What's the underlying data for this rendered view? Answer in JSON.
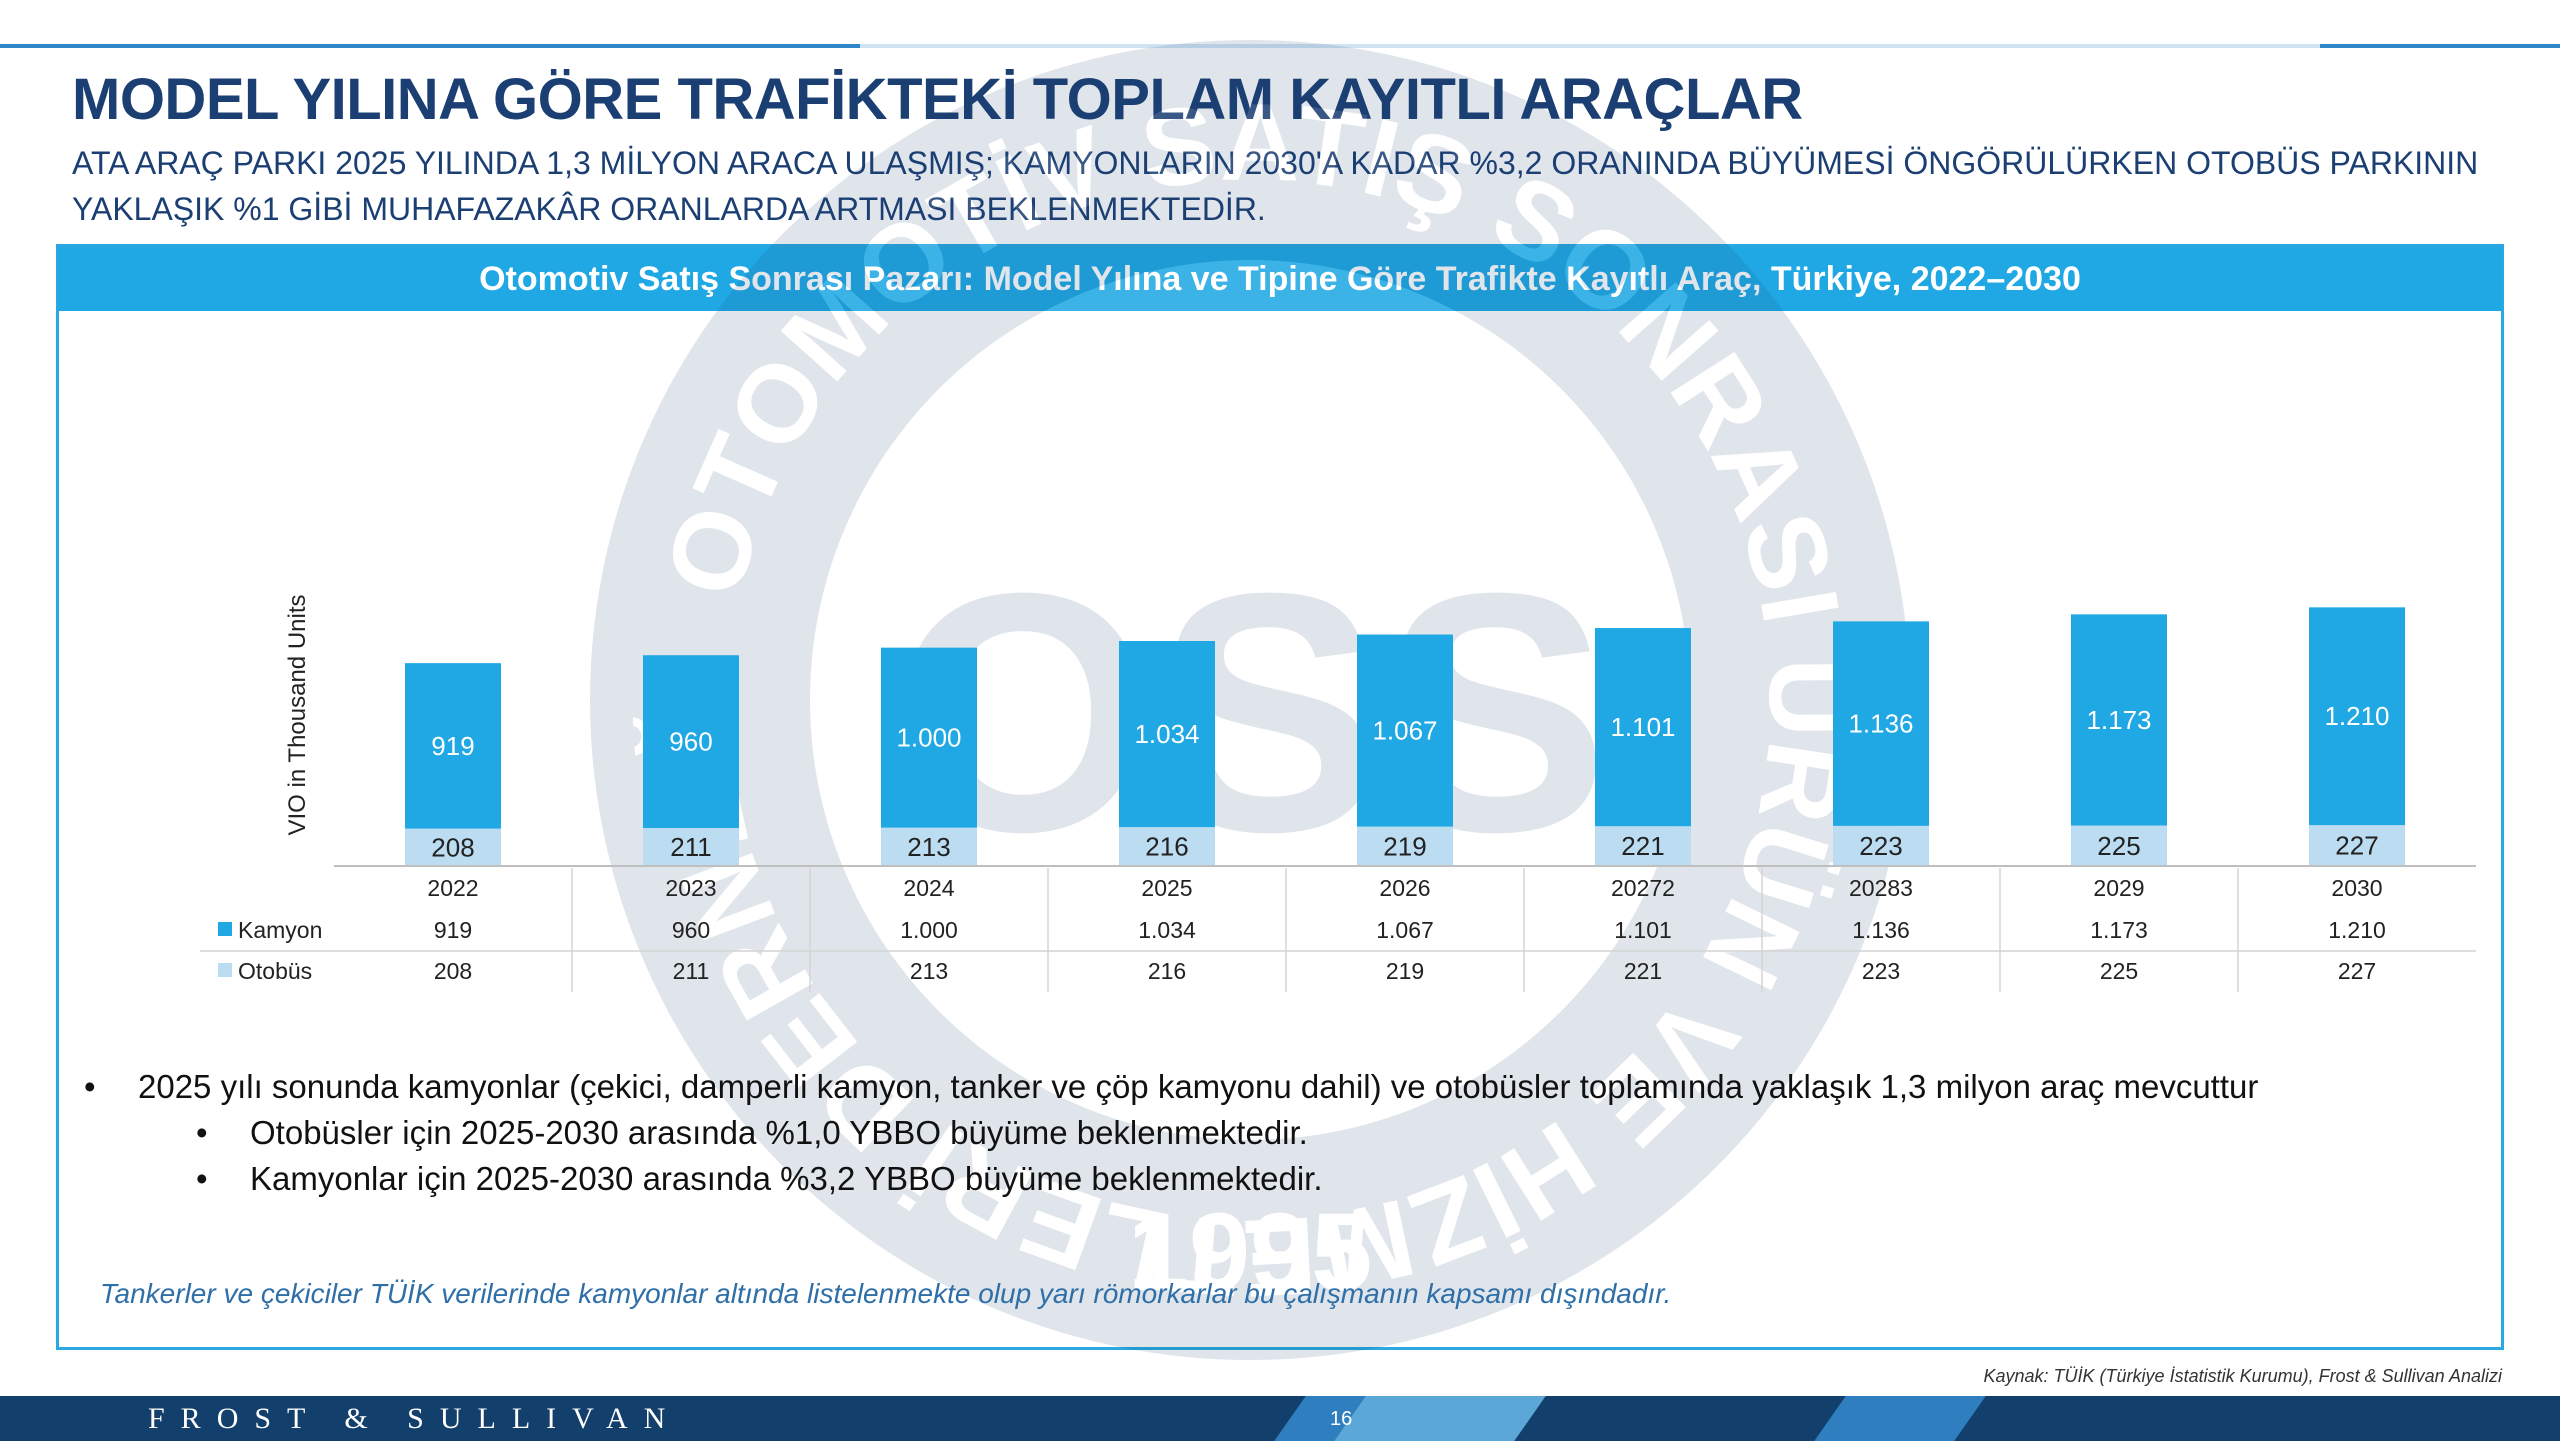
{
  "header": {
    "title": "MODEL YILINA GÖRE TRAFİKTEKİ TOPLAM KAYITLI ARAÇLAR",
    "subtitle": "ATA ARAÇ PARKI 2025 YILINDA 1,3 MİLYON ARACA ULAŞMIŞ; KAMYONLARIN 2030'A KADAR %3,2 ORANINDA BÜYÜMESİ ÖNGÖRÜLÜRKEN OTOBÜS PARKININ YAKLAŞIK %1 GİBİ MUHAFAZAKÂR ORANLARDA ARTMASI BEKLENMEKTEDİR."
  },
  "panel": {
    "title": "Otomotiv Satış Sonrası Pazarı: Model Yılına ve Tipine Göre Trafikte Kayıtlı Araç, Türkiye, 2022–2030"
  },
  "chart_data": {
    "type": "bar",
    "stacked": true,
    "ylabel": "VIO in Thousand Units",
    "categories": [
      "2022",
      "2023",
      "2024",
      "2025",
      "2026",
      "20272",
      "20283",
      "2029",
      "2030"
    ],
    "series": [
      {
        "name": "Kamyon",
        "values": [
          919,
          960,
          1000,
          1034,
          1067,
          1101,
          1136,
          1173,
          1210
        ],
        "labels": [
          "919",
          "960",
          "1.000",
          "1.034",
          "1.067",
          "1.101",
          "1.136",
          "1.173",
          "1.210"
        ],
        "color": "#1fa8e3"
      },
      {
        "name": "Otobüs",
        "values": [
          208,
          211,
          213,
          216,
          219,
          221,
          223,
          225,
          227
        ],
        "labels": [
          "208",
          "211",
          "213",
          "216",
          "219",
          "221",
          "223",
          "225",
          "227"
        ],
        "color": "#bcdcf1"
      }
    ],
    "legend": "data-table-below",
    "grid": false
  },
  "bullets": {
    "main": "2025 yılı sonunda kamyonlar (çekici, damperli kamyon, tanker ve çöp kamyonu dahil) ve otobüsler toplamında yaklaşık 1,3 milyon araç mevcuttur",
    "sub1": "Otobüsler için 2025-2030 arasında %1,0 YBBO büyüme beklenmektedir.",
    "sub2": "Kamyonlar için 2025-2030 arasında %3,2 YBBO büyüme beklenmektedir.",
    "marker": "•"
  },
  "note": "Tankerler ve çekiciler TÜİK verilerinde kamyonlar altında listelenmekte olup yarı römorkarlar bu çalışmanın kapsamı dışındadır.",
  "source": "Kaynak: TÜİK (Türkiye İstatistik Kurumu), Frost & Sullivan Analizi",
  "footer": {
    "brand": "FROST & SULLIVAN",
    "page": "16"
  },
  "watermark": {
    "ring_text": "OTOMOTİV SATIŞ SONRASI ÜRÜN VE HİZMETLERİ DERNEĞİ",
    "center_text": "OSS",
    "year": "1995"
  },
  "colors": {
    "accent": "#1fa8e3",
    "title": "#1b3f73",
    "footer": "#123f6b"
  }
}
